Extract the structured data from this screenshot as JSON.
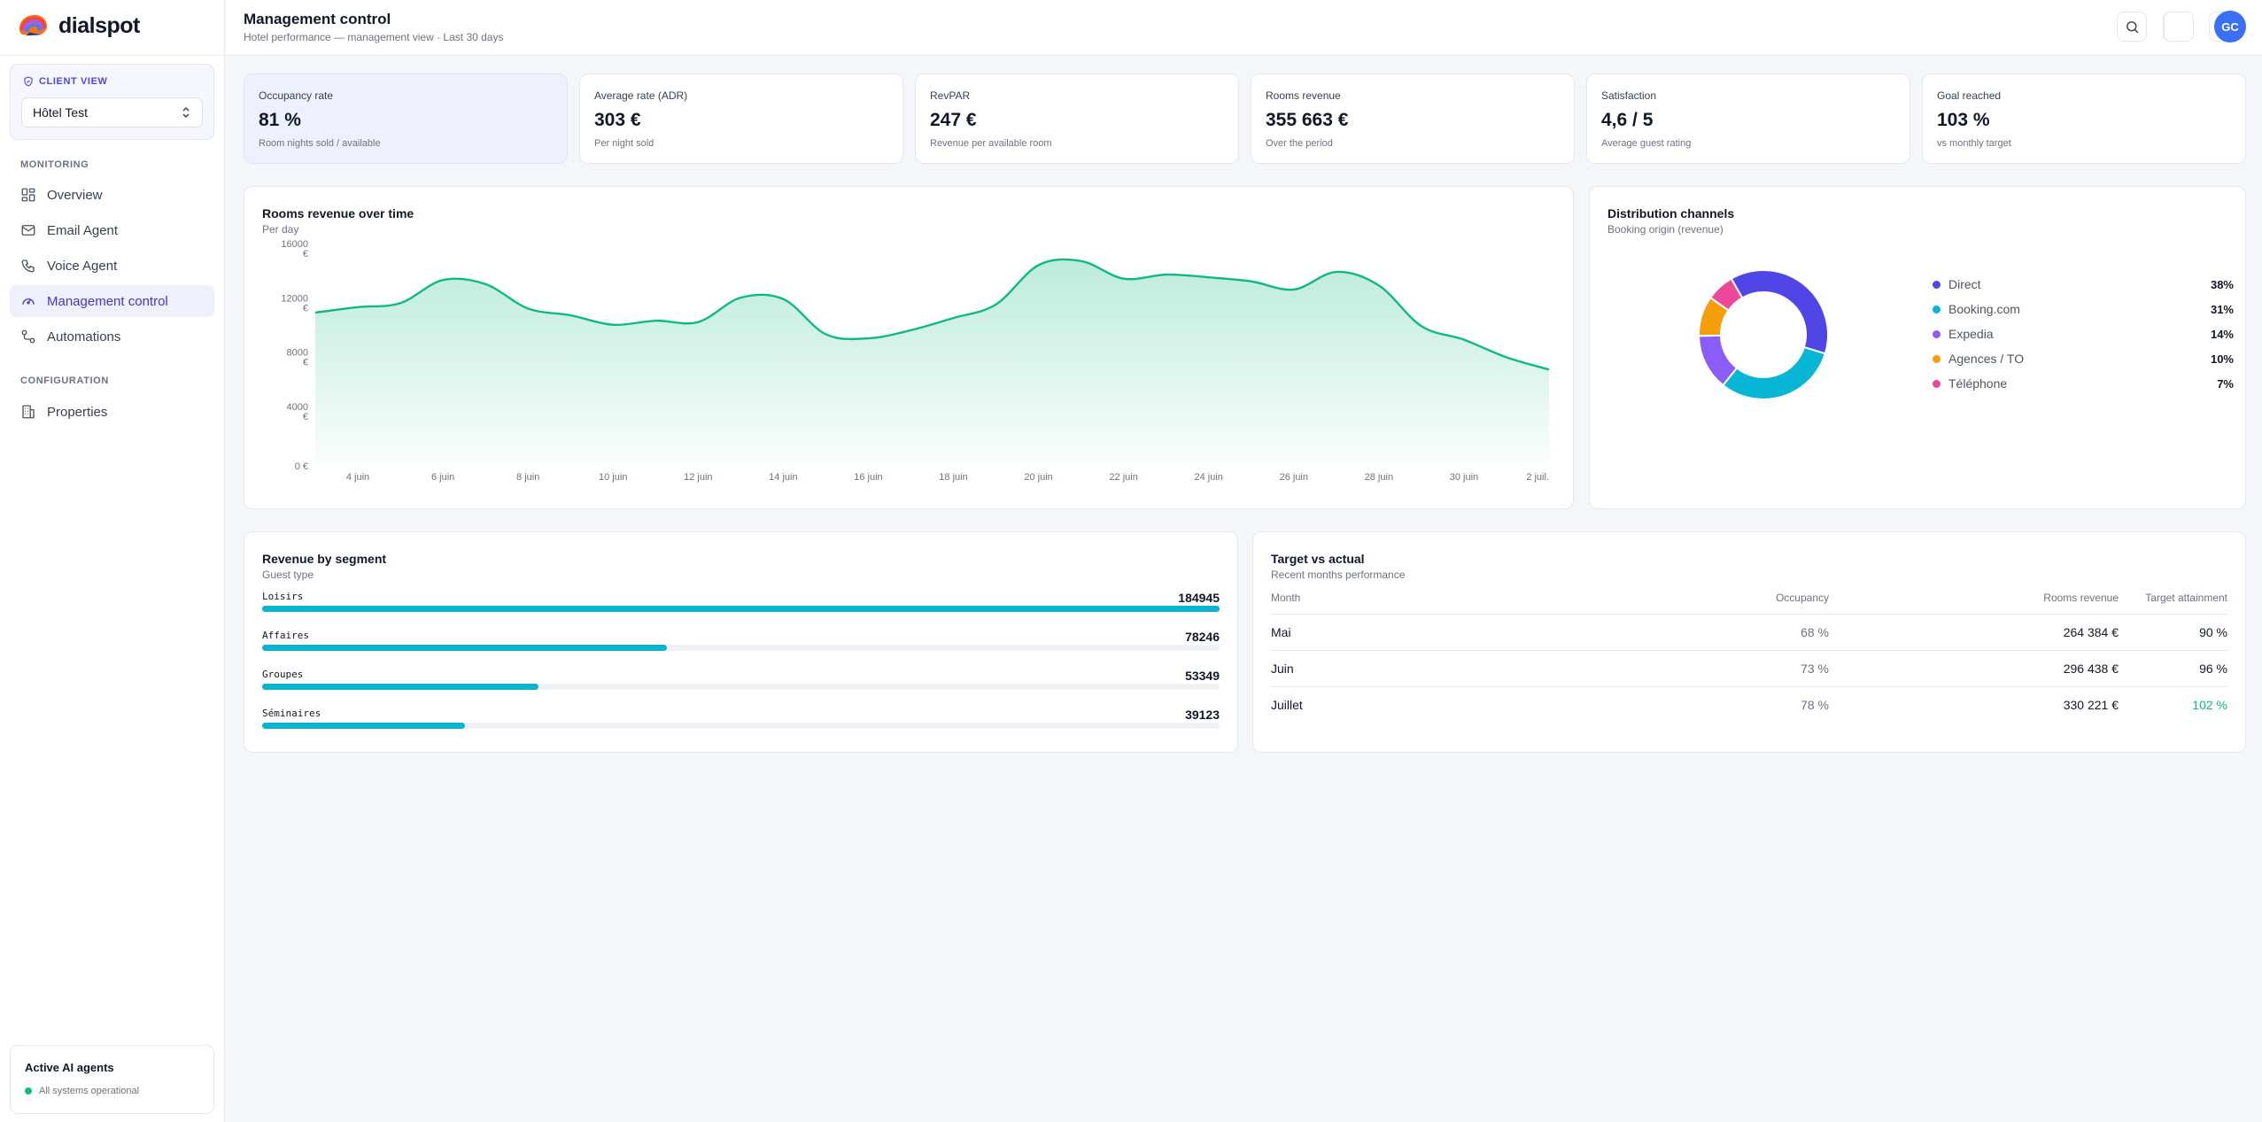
{
  "brand": {
    "name": "dialspot"
  },
  "sidebar": {
    "client_view_label": "CLIENT VIEW",
    "hotel_selected": "Hôtel Test",
    "monitoring_heading": "MONITORING",
    "configuration_heading": "CONFIGURATION",
    "items": [
      {
        "label": "Overview",
        "icon": "grid-icon"
      },
      {
        "label": "Email Agent",
        "icon": "mail-icon"
      },
      {
        "label": "Voice Agent",
        "icon": "phone-icon"
      },
      {
        "label": "Management control",
        "icon": "gauge-icon",
        "active": true
      },
      {
        "label": "Automations",
        "icon": "flow-icon"
      }
    ],
    "config_items": [
      {
        "label": "Properties",
        "icon": "building-icon"
      }
    ],
    "agents": {
      "title": "Active AI agents",
      "status": "All systems operational"
    }
  },
  "header": {
    "title": "Management control",
    "subtitle": "Hotel performance — management view · Last 30 days",
    "avatar_initials": "GC"
  },
  "kpis": [
    {
      "label": "Occupancy rate",
      "value": "81 %",
      "sub": "Room nights sold / available"
    },
    {
      "label": "Average rate (ADR)",
      "value": "303 €",
      "sub": "Per night sold"
    },
    {
      "label": "RevPAR",
      "value": "247 €",
      "sub": "Revenue per available room"
    },
    {
      "label": "Rooms revenue",
      "value": "355 663 €",
      "sub": "Over the period"
    },
    {
      "label": "Satisfaction",
      "value": "4,6 / 5",
      "sub": "Average guest rating"
    },
    {
      "label": "Goal reached",
      "value": "103 %",
      "sub": "vs monthly target"
    }
  ],
  "revenue_chart": {
    "title": "Rooms revenue over time",
    "subtitle": "Per day"
  },
  "channels": {
    "title": "Distribution channels",
    "subtitle": "Booking origin (revenue)",
    "items": [
      {
        "label": "Direct",
        "pct": "38%",
        "color": "#4f46e5"
      },
      {
        "label": "Booking.com",
        "pct": "31%",
        "color": "#06b6d4"
      },
      {
        "label": "Expedia",
        "pct": "14%",
        "color": "#8b5cf6"
      },
      {
        "label": "Agences / TO",
        "pct": "10%",
        "color": "#f59e0b"
      },
      {
        "label": "Téléphone",
        "pct": "7%",
        "color": "#ec4899"
      }
    ]
  },
  "segments": {
    "title": "Revenue by segment",
    "subtitle": "Guest type",
    "max": 184945,
    "items": [
      {
        "label": "Loisirs",
        "value": "184945"
      },
      {
        "label": "Affaires",
        "value": "78246"
      },
      {
        "label": "Groupes",
        "value": "53349"
      },
      {
        "label": "Séminaires",
        "value": "39123"
      }
    ]
  },
  "target_table": {
    "title": "Target vs actual",
    "subtitle": "Recent months performance",
    "headers": [
      "Month",
      "Occupancy",
      "Rooms revenue",
      "Target attainment"
    ],
    "rows": [
      [
        "Mai",
        "68 %",
        "264 384 €",
        "90 %"
      ],
      [
        "Juin",
        "73 %",
        "296 438 €",
        "96 %"
      ],
      [
        "Juillet",
        "78 %",
        "330 221 €",
        "102 %"
      ]
    ]
  },
  "chart_data": [
    {
      "type": "area",
      "title": "Rooms revenue over time",
      "subtitle": "Per day",
      "xlabel": "",
      "ylabel": "",
      "ylim": [
        0,
        16000
      ],
      "y_ticks": [
        "0 €",
        "4000 €",
        "8000 €",
        "12000 €",
        "16000 €"
      ],
      "x_ticks": [
        "4 juin",
        "6 juin",
        "8 juin",
        "10 juin",
        "12 juin",
        "14 juin",
        "16 juin",
        "18 juin",
        "20 juin",
        "22 juin",
        "24 juin",
        "26 juin",
        "28 juin",
        "30 juin",
        "2 juil."
      ],
      "x": [
        "3 juin",
        "4 juin",
        "5 juin",
        "6 juin",
        "7 juin",
        "8 juin",
        "9 juin",
        "10 juin",
        "11 juin",
        "12 juin",
        "13 juin",
        "14 juin",
        "15 juin",
        "16 juin",
        "17 juin",
        "18 juin",
        "19 juin",
        "20 juin",
        "21 juin",
        "22 juin",
        "23 juin",
        "24 juin",
        "25 juin",
        "26 juin",
        "27 juin",
        "28 juin",
        "29 juin",
        "30 juin",
        "1 juil.",
        "2 juil."
      ],
      "values": [
        11300,
        11700,
        12000,
        13700,
        13400,
        11600,
        11100,
        10400,
        10700,
        10600,
        12400,
        12300,
        9700,
        9400,
        10000,
        10900,
        11900,
        14800,
        15100,
        13800,
        14100,
        13900,
        13600,
        13000,
        14300,
        13300,
        10300,
        9300,
        8000,
        7100
      ],
      "grid": false,
      "color": "#10b981"
    },
    {
      "type": "pie",
      "title": "Distribution channels",
      "subtitle": "Booking origin (revenue)",
      "categories": [
        "Direct",
        "Booking.com",
        "Expedia",
        "Agences / TO",
        "Téléphone"
      ],
      "values": [
        38,
        31,
        14,
        10,
        7
      ],
      "colors": [
        "#4f46e5",
        "#06b6d4",
        "#8b5cf6",
        "#f59e0b",
        "#ec4899"
      ],
      "donut": true,
      "legend": "right"
    },
    {
      "type": "bar",
      "title": "Revenue by segment",
      "subtitle": "Guest type",
      "orientation": "horizontal",
      "categories": [
        "Loisirs",
        "Affaires",
        "Groupes",
        "Séminaires"
      ],
      "values": [
        184945,
        78246,
        53349,
        39123
      ]
    }
  ]
}
